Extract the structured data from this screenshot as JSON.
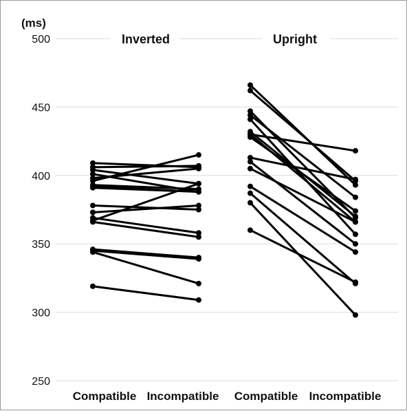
{
  "chart_data": {
    "type": "line",
    "ylabel": "(ms)",
    "ylim": [
      250,
      500
    ],
    "yticks": [
      500,
      450,
      400,
      350,
      300,
      250
    ],
    "grid": true,
    "panels": [
      {
        "title": "Inverted",
        "categories": [
          "Compatible",
          "Incompatible"
        ],
        "pairs": [
          [
            409,
            406
          ],
          [
            406,
            407
          ],
          [
            404,
            394
          ],
          [
            401,
            388
          ],
          [
            398,
            405
          ],
          [
            396,
            415
          ],
          [
            393,
            390
          ],
          [
            392,
            388
          ],
          [
            391,
            388
          ],
          [
            378,
            375
          ],
          [
            373,
            378
          ],
          [
            369,
            358
          ],
          [
            366,
            355
          ],
          [
            367,
            394
          ],
          [
            346,
            340
          ],
          [
            345,
            339
          ],
          [
            344,
            321
          ],
          [
            319,
            309
          ]
        ]
      },
      {
        "title": "Upright",
        "categories": [
          "Compatible",
          "Incompatible"
        ],
        "pairs": [
          [
            466,
            393
          ],
          [
            462,
            396
          ],
          [
            447,
            369
          ],
          [
            444,
            384
          ],
          [
            441,
            357
          ],
          [
            432,
            370
          ],
          [
            430,
            366
          ],
          [
            428,
            374
          ],
          [
            413,
            397
          ],
          [
            410,
            350
          ],
          [
            405,
            366
          ],
          [
            392,
            344
          ],
          [
            387,
            321
          ],
          [
            380,
            298
          ],
          [
            360,
            322
          ],
          [
            430,
            418
          ]
        ]
      }
    ]
  }
}
